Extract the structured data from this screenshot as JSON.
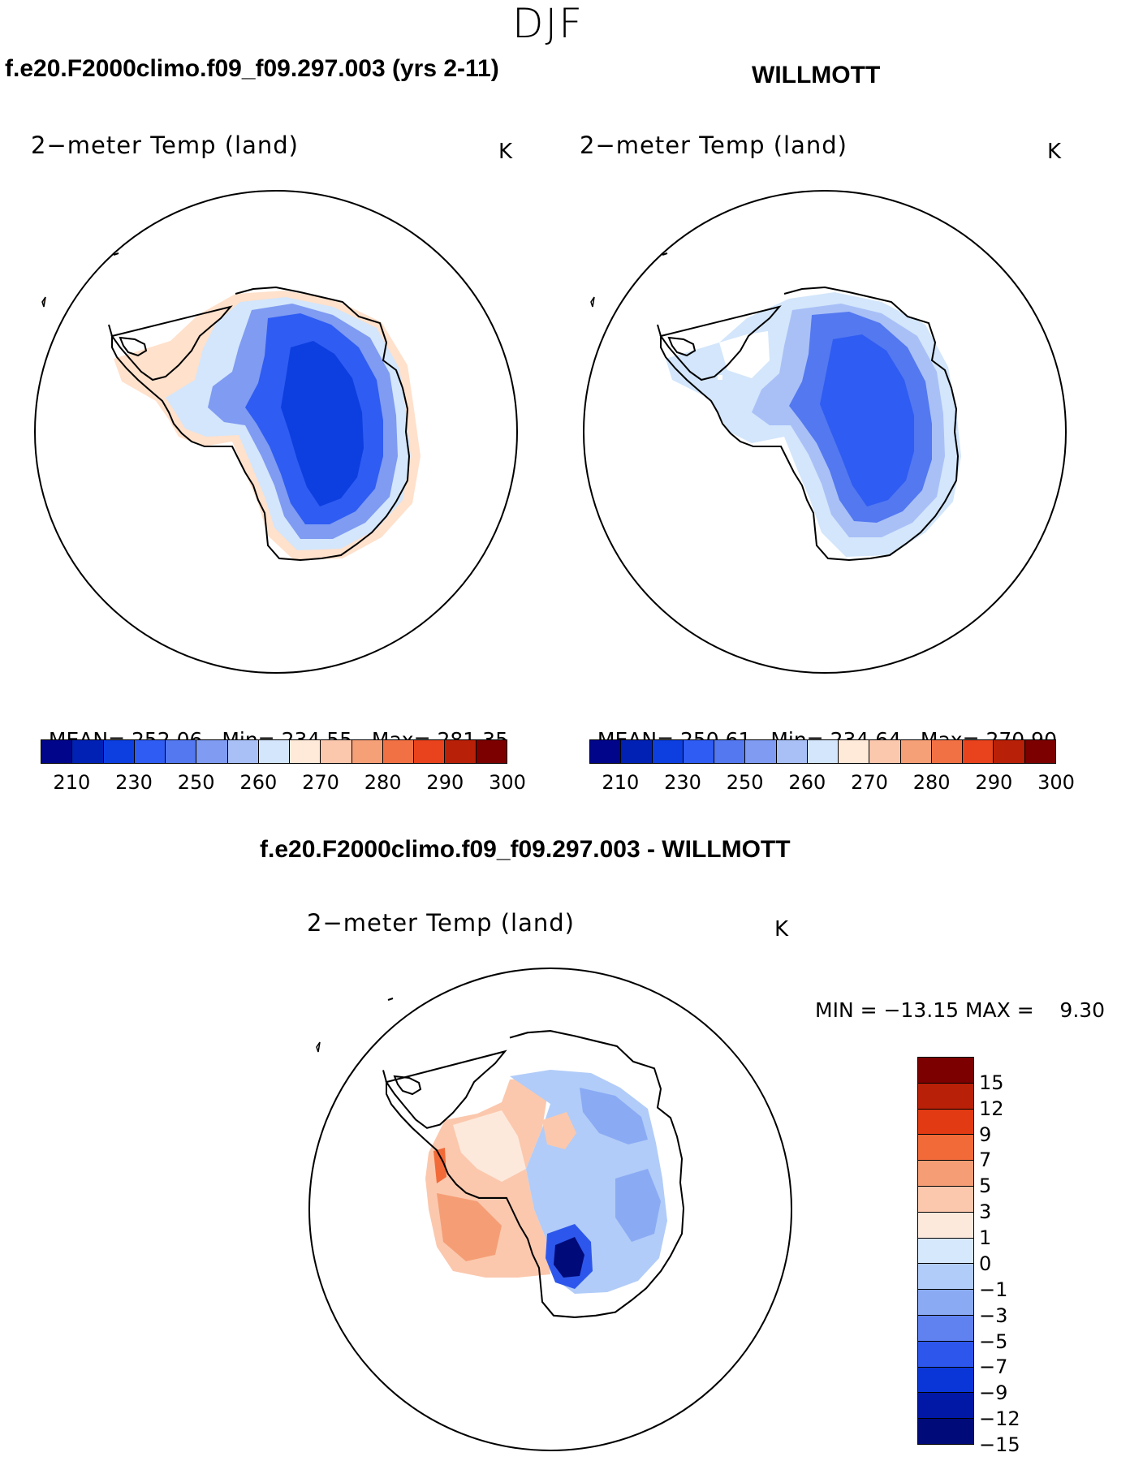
{
  "season": "DJF",
  "panel_left": {
    "case_title": "f.e20.F2000climo.f09_f09.297.003 (yrs 2-11)",
    "var_title": "2−meter Temp (land)",
    "unit": "K",
    "mean_label": "MEAN=",
    "mean": "252.06",
    "min_label": "Min=",
    "min": "234.55",
    "max_label": "Max=",
    "max": "281.35"
  },
  "panel_right": {
    "case_title": "WILLMOTT",
    "var_title": "2−meter Temp (land)",
    "unit": "K",
    "mean_label": "MEAN=",
    "mean": "250.61",
    "min_label": "Min=",
    "min": "234.64",
    "max_label": "Max=",
    "max": "270.90"
  },
  "abs_colorbar": {
    "colors": [
      "#00058a",
      "#0021b4",
      "#0d3fe0",
      "#2f5cf2",
      "#5378f0",
      "#7f9bf2",
      "#a9c0f7",
      "#d3e6fb",
      "#ffe9d8",
      "#fbc8ad",
      "#f6a078",
      "#f27144",
      "#e8431c",
      "#b92008",
      "#7c0000"
    ],
    "ticks": [
      "210",
      "230",
      "250",
      "260",
      "270",
      "280",
      "290",
      "300"
    ]
  },
  "panel_diff": {
    "title": "f.e20.F2000climo.f09_f09.297.003 - WILLMOTT",
    "var_title": "2−meter Temp (land)",
    "unit": "K",
    "minmax_text": "MIN = −13.15 MAX =    9.30"
  },
  "diff_colorbar": {
    "colors": [
      "#7c0000",
      "#b92008",
      "#e23a12",
      "#f26a38",
      "#f59e76",
      "#fbc8ad",
      "#fde9dc",
      "#d6e8fb",
      "#b1ccf8",
      "#8aaaf4",
      "#5f82f0",
      "#2d57ec",
      "#0a36d8",
      "#0118a6",
      "#000a78"
    ],
    "ticks": [
      "15",
      "12",
      "9",
      "7",
      "5",
      "3",
      "1",
      "0",
      "−1",
      "−3",
      "−5",
      "−7",
      "−9",
      "−12",
      "−15"
    ]
  }
}
